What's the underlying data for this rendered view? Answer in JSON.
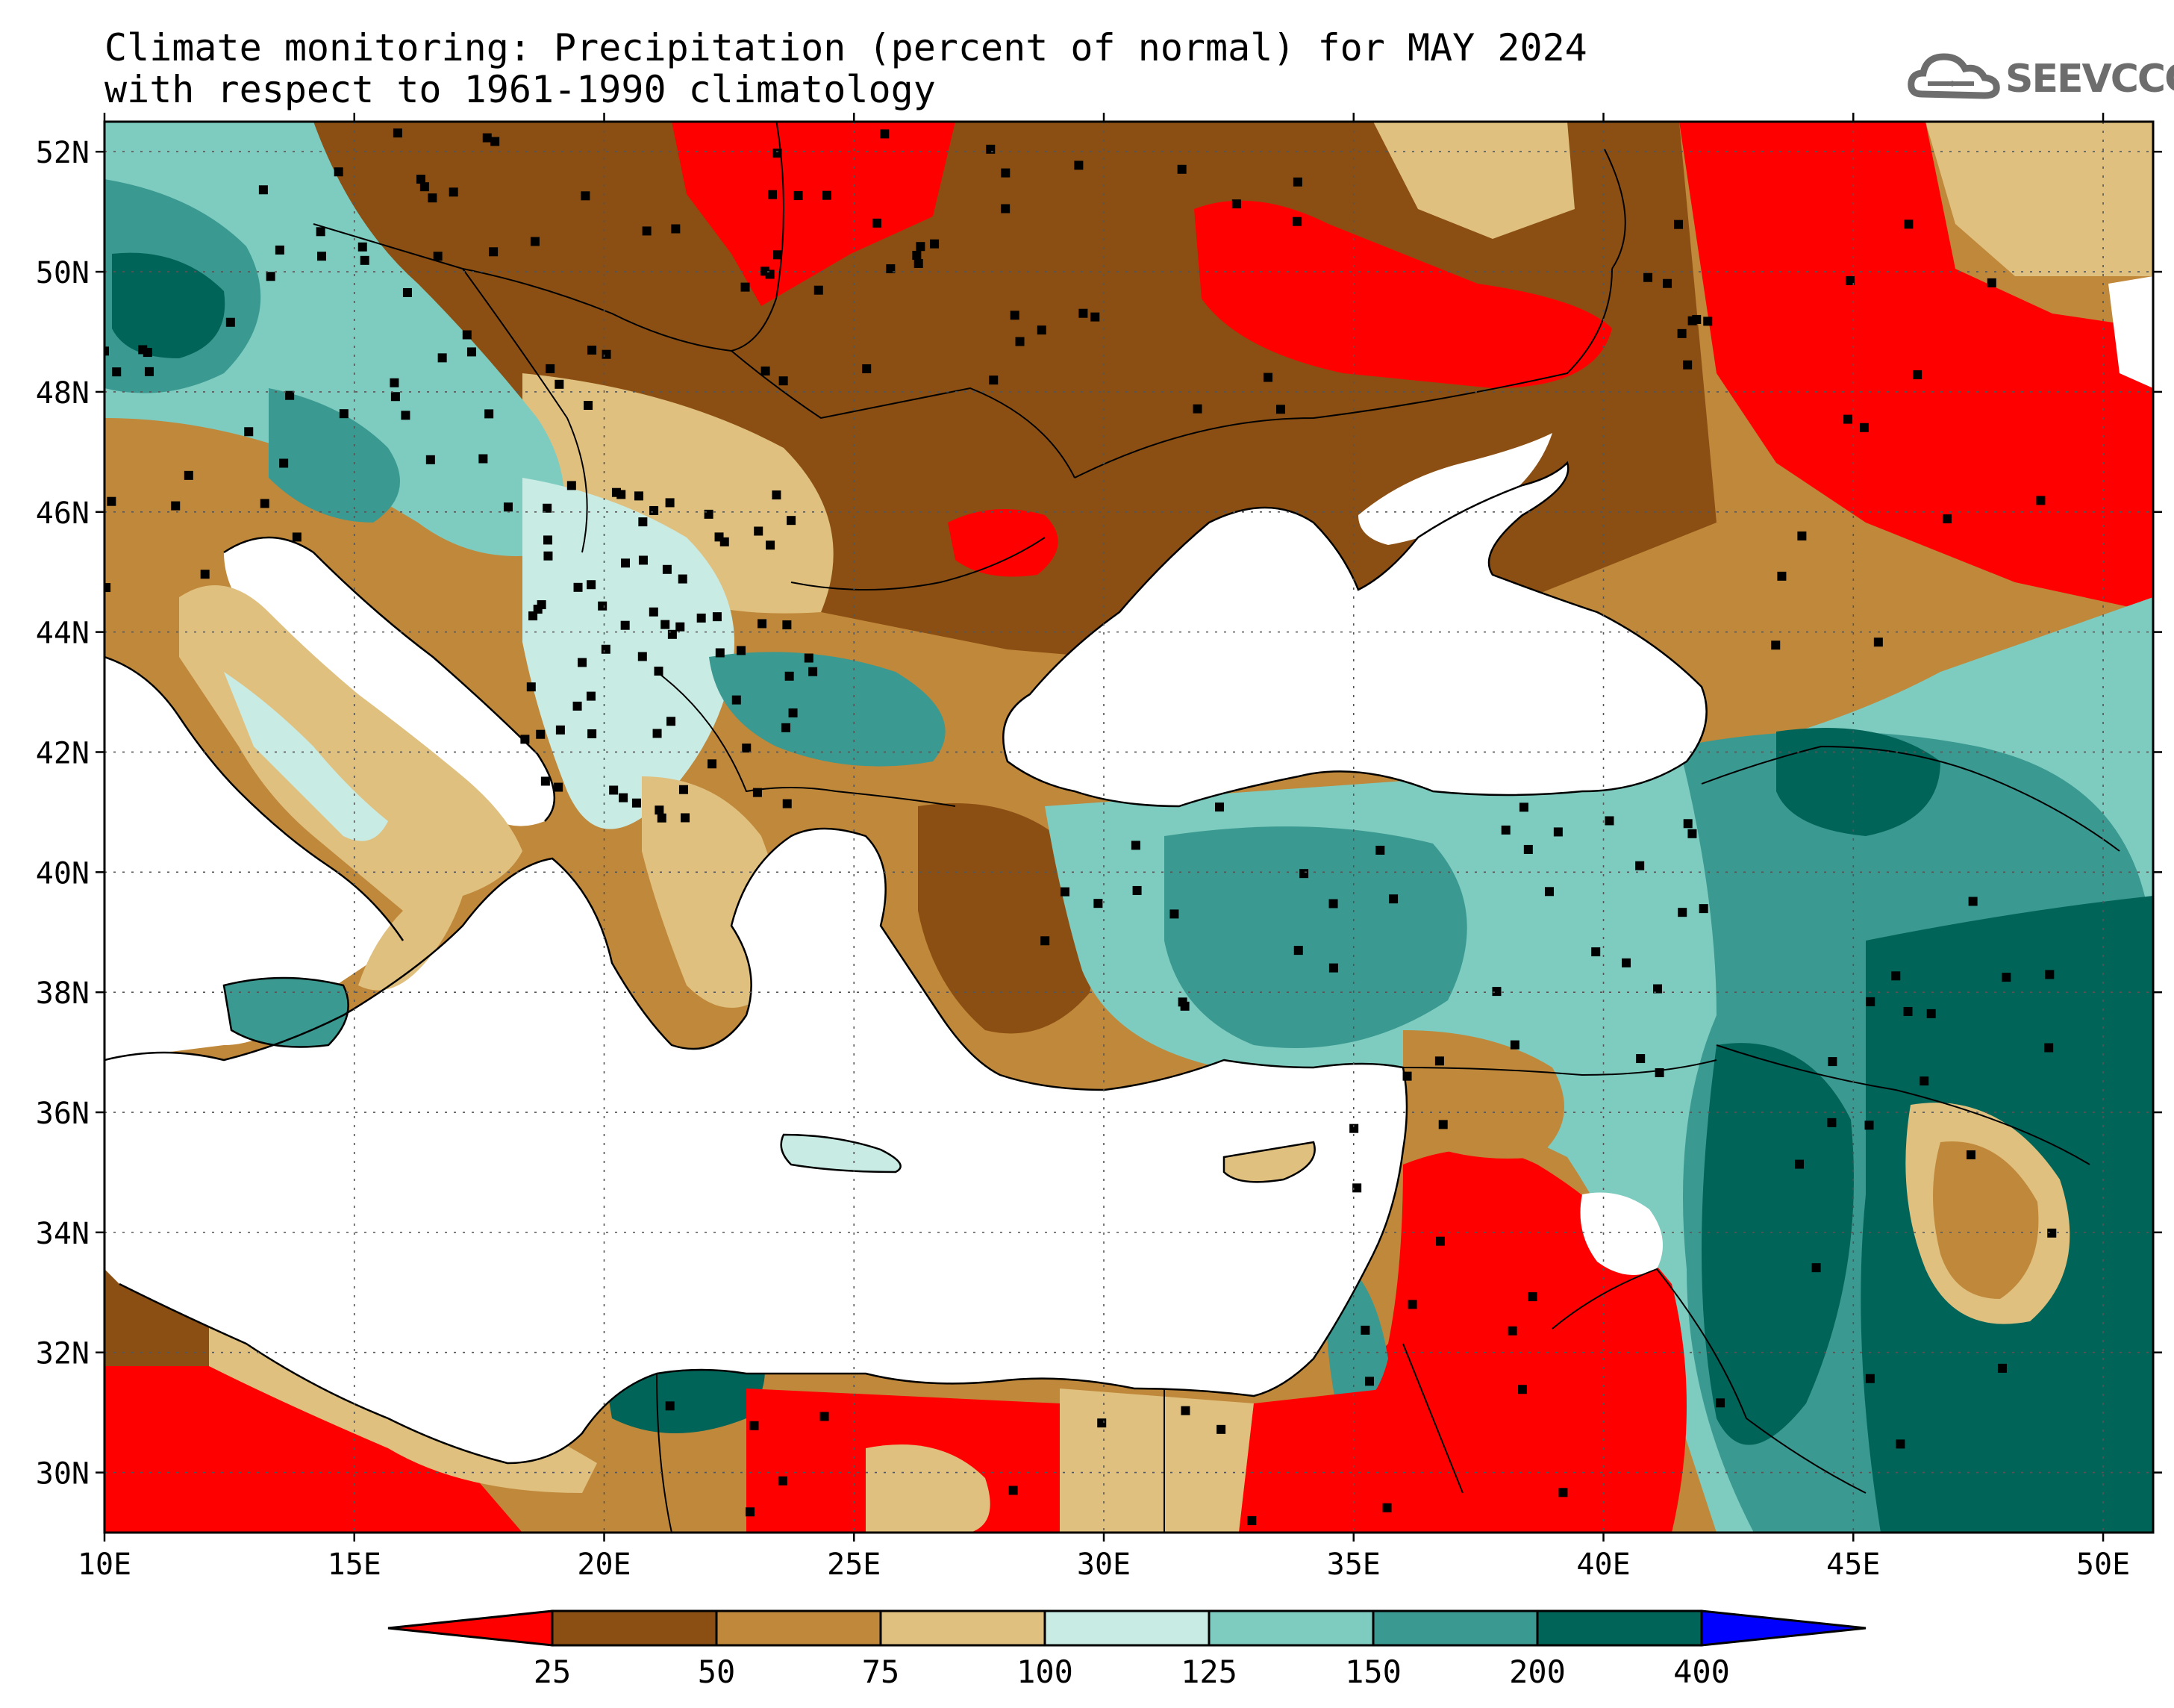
{
  "title": {
    "line1": "Climate monitoring: Precipitation (percent of normal) for MAY 2024",
    "line2": "with respect to 1961-1990 climatology"
  },
  "logo": {
    "text": "SEEVCCC",
    "icon": "cloud-icon"
  },
  "map": {
    "lat_ticks": [
      "52N",
      "50N",
      "48N",
      "46N",
      "44N",
      "42N",
      "40N",
      "38N",
      "36N",
      "34N",
      "32N",
      "30N"
    ],
    "lon_ticks": [
      "10E",
      "15E",
      "20E",
      "25E",
      "30E",
      "35E",
      "40E",
      "45E",
      "50E"
    ],
    "lon_range": [
      10,
      51
    ],
    "lat_range": [
      29,
      52.5
    ],
    "grid": "dotted"
  },
  "legend": {
    "labels": [
      "25",
      "50",
      "75",
      "100",
      "125",
      "150",
      "200",
      "400"
    ],
    "colors": [
      "#ff0000",
      "#8b4f13",
      "#c0883a",
      "#e0c07f",
      "#c8ebe4",
      "#7ecbbf",
      "#3a9990",
      "#006459",
      "#0000ff"
    ]
  }
}
